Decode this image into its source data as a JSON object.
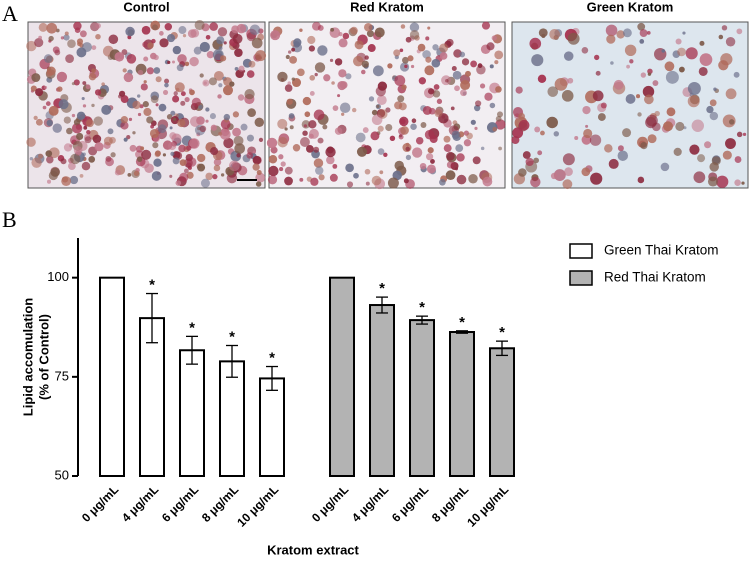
{
  "panel_labels": [
    "A",
    "B"
  ],
  "images": [
    "Control",
    "Red Kratom",
    "Green Kratom"
  ],
  "chart_data": {
    "type": "bar",
    "y_label": [
      "Lipid accomulation",
      "(% of Control)"
    ],
    "x_label": "Kratom extract",
    "categories": [
      "0 μg/mL",
      "4 μg/mL",
      "6 μg/mL",
      "8 μg/mL",
      "10 μg/mL"
    ],
    "series": [
      {
        "name": "Green Thai Kratom",
        "color": "#ffffff",
        "values": [
          100,
          89.8,
          81.7,
          78.9,
          74.6
        ],
        "errors": [
          0,
          6.2,
          3.5,
          4,
          3
        ],
        "significance": [
          null,
          "*",
          "*",
          "*",
          "*"
        ]
      },
      {
        "name": "Red Thai Kratom",
        "color": "#b3b3b3",
        "values": [
          100,
          93.1,
          89.3,
          86.3,
          82.2
        ],
        "errors": [
          0,
          2,
          1,
          0.3,
          1.8
        ],
        "significance": [
          null,
          "*",
          "*",
          "*",
          "*"
        ]
      }
    ],
    "ylim": [
      50,
      110
    ],
    "yticks": [
      50,
      75,
      100
    ],
    "legend": "top-right"
  }
}
